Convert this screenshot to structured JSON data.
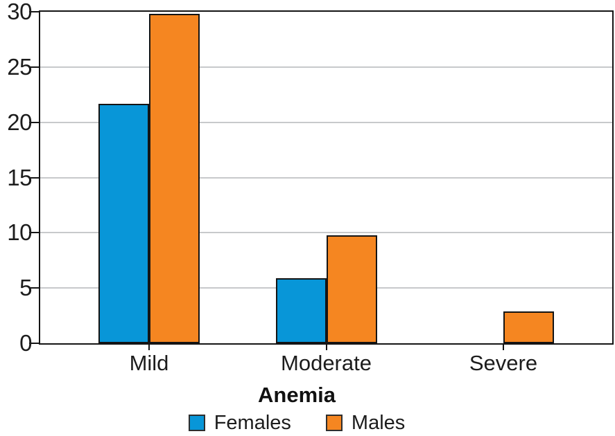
{
  "chart_data": {
    "type": "bar",
    "title": "",
    "xlabel": "Anemia",
    "ylabel": "",
    "categories": [
      "Mild",
      "Moderate",
      "Severe"
    ],
    "series": [
      {
        "name": "Females",
        "color": "#0896d8",
        "values": [
          21.7,
          5.9,
          0
        ]
      },
      {
        "name": "Males",
        "color": "#f58621",
        "values": [
          29.8,
          9.8,
          2.9
        ]
      }
    ],
    "ylim": [
      0,
      30
    ],
    "yticks": [
      0,
      5,
      10,
      15,
      20,
      25,
      30
    ],
    "grid": true,
    "grid_color": "#c7c9cb",
    "outline_color": "#141414",
    "legend_position": "bottom"
  }
}
